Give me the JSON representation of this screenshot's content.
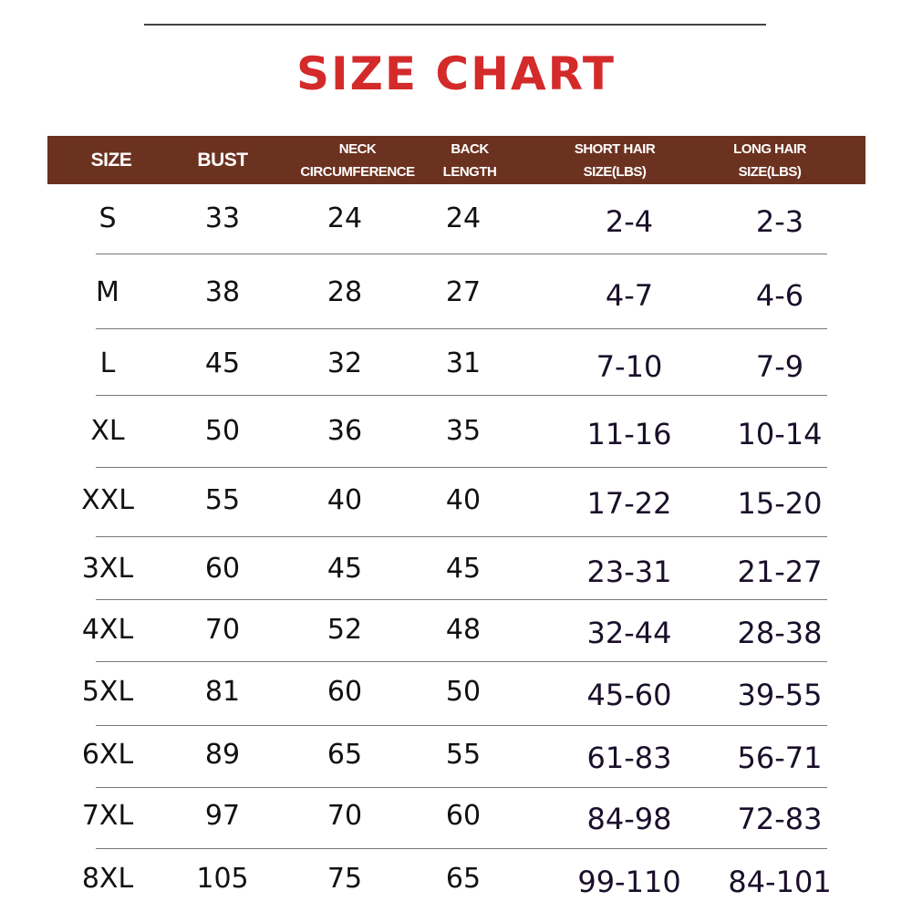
{
  "title": "SIZE CHART",
  "colors": {
    "title": "#d42a2a",
    "header_bg": "#6c3220",
    "header_text": "#ffffff"
  },
  "columns": [
    "SIZE",
    "BUST",
    "NECK\nCIRCUMFERENCE",
    "BACK\nLENGTH",
    "SHORT HAIR\nSIZE(LBS)",
    "LONG HAIR\nSIZE(LBS)"
  ],
  "rows": [
    [
      "S",
      "33",
      "24",
      "24",
      "2-4",
      "2-3"
    ],
    [
      "M",
      "38",
      "28",
      "27",
      "4-7",
      "4-6"
    ],
    [
      "L",
      "45",
      "32",
      "31",
      "7-10",
      "7-9"
    ],
    [
      "XL",
      "50",
      "36",
      "35",
      "11-16",
      "10-14"
    ],
    [
      "XXL",
      "55",
      "40",
      "40",
      "17-22",
      "15-20"
    ],
    [
      "3XL",
      "60",
      "45",
      "45",
      "23-31",
      "21-27"
    ],
    [
      "4XL",
      "70",
      "52",
      "48",
      "32-44",
      "28-38"
    ],
    [
      "5XL",
      "81",
      "60",
      "50",
      "45-60",
      "39-55"
    ],
    [
      "6XL",
      "89",
      "65",
      "55",
      "61-83",
      "56-71"
    ],
    [
      "7XL",
      "97",
      "70",
      "60",
      "84-98",
      "72-83"
    ],
    [
      "8XL",
      "105",
      "75",
      "65",
      "99-110",
      "84-101"
    ]
  ]
}
